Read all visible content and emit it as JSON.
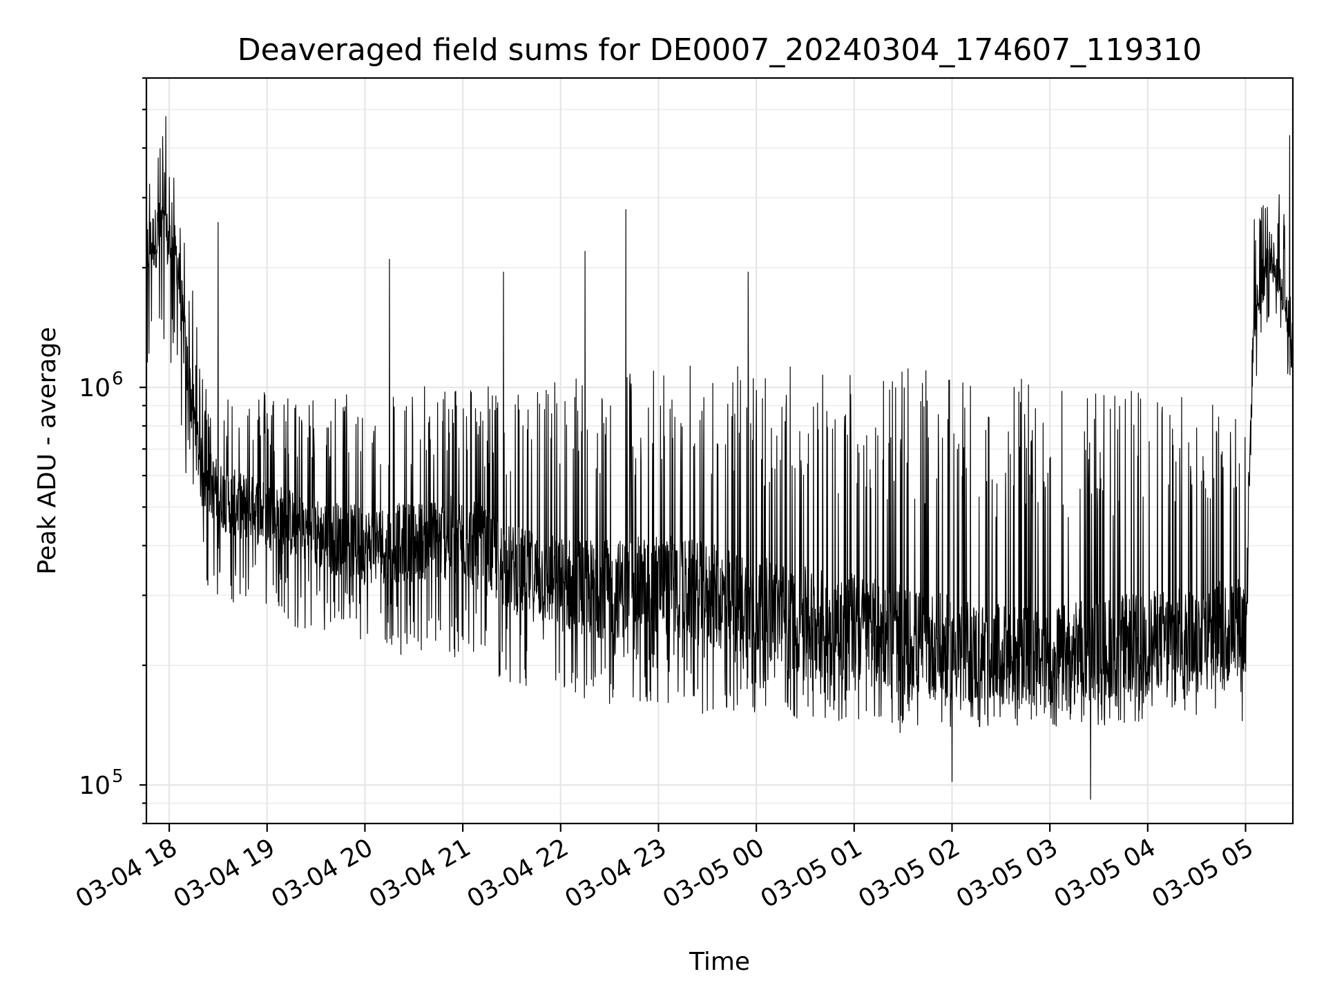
{
  "chart_data": {
    "type": "line",
    "title": "Deaveraged field sums for DE0007_20240304_174607_119310",
    "xlabel": "Time",
    "ylabel": "Peak ADU - average",
    "yscale": "log",
    "ylim": [
      80000,
      6000000
    ],
    "xlim": [
      "2024-03-04 17:46",
      "2024-03-05 05:29"
    ],
    "grid": true,
    "grid_minor": true,
    "legend": "none",
    "line_color": "#000000",
    "x_tick_labels": [
      "03-04 18",
      "03-04 19",
      "03-04 20",
      "03-04 21",
      "03-04 22",
      "03-04 23",
      "03-05 00",
      "03-05 01",
      "03-05 02",
      "03-05 03",
      "03-05 04",
      "03-05 05"
    ],
    "x_tick_values": [
      "2024-03-04 18:00",
      "2024-03-04 19:00",
      "2024-03-04 20:00",
      "2024-03-04 21:00",
      "2024-03-04 22:00",
      "2024-03-04 23:00",
      "2024-03-05 00:00",
      "2024-03-05 01:00",
      "2024-03-05 02:00",
      "2024-03-05 03:00",
      "2024-03-05 04:00",
      "2024-03-05 05:00"
    ],
    "y_tick_labels": [
      {
        "base": "10",
        "exp": "5",
        "value": 100000
      },
      {
        "base": "10",
        "exp": "6",
        "value": 1000000
      }
    ],
    "series": [
      {
        "values_description_hint": "envelope",
        "x": [
          "2024-03-04 17:46",
          "2024-03-04 17:55",
          "2024-03-04 18:05",
          "2024-03-04 18:10",
          "2024-03-04 18:20",
          "2024-03-04 18:35",
          "2024-03-04 19:00",
          "2024-03-04 19:30",
          "2024-03-04 20:00",
          "2024-03-04 20:30",
          "2024-03-04 21:00",
          "2024-03-04 21:30",
          "2024-03-04 22:00",
          "2024-03-04 22:30",
          "2024-03-04 23:00",
          "2024-03-04 23:30",
          "2024-03-05 00:00",
          "2024-03-05 00:30",
          "2024-03-05 01:00",
          "2024-03-05 01:30",
          "2024-03-05 02:00",
          "2024-03-05 02:30",
          "2024-03-05 03:00",
          "2024-03-05 03:30",
          "2024-03-05 04:00",
          "2024-03-05 04:30",
          "2024-03-05 05:00",
          "2024-03-05 05:05",
          "2024-03-05 05:15",
          "2024-03-05 05:29"
        ],
        "median": [
          2200000,
          2500000,
          2100000,
          1200000,
          600000,
          520000,
          480000,
          430000,
          400000,
          410000,
          420000,
          350000,
          320000,
          310000,
          320000,
          300000,
          280000,
          260000,
          250000,
          230000,
          220000,
          210000,
          210000,
          220000,
          230000,
          240000,
          260000,
          1500000,
          2200000,
          1400000
        ],
        "high": [
          3500000,
          4500000,
          3200000,
          2500000,
          1100000,
          1000000,
          1000000,
          950000,
          1000000,
          1000000,
          1050000,
          1000000,
          1100000,
          1100000,
          1150000,
          1150000,
          1150000,
          1150000,
          1150000,
          1150000,
          1050000,
          1050000,
          1050000,
          1000000,
          1000000,
          950000,
          950000,
          2700000,
          3300000,
          2800000
        ],
        "low": [
          1100000,
          1300000,
          1000000,
          600000,
          300000,
          280000,
          260000,
          240000,
          220000,
          210000,
          200000,
          180000,
          170000,
          160000,
          160000,
          150000,
          150000,
          145000,
          140000,
          135000,
          135000,
          140000,
          140000,
          140000,
          145000,
          150000,
          160000,
          1000000,
          1400000,
          1000000
        ],
        "peaks": [
          {
            "x": "2024-03-04 17:58",
            "y": 4800000
          },
          {
            "x": "2024-03-04 18:30",
            "y": 2600000
          },
          {
            "x": "2024-03-04 20:15",
            "y": 2100000
          },
          {
            "x": "2024-03-04 21:25",
            "y": 1950000
          },
          {
            "x": "2024-03-04 22:15",
            "y": 2200000
          },
          {
            "x": "2024-03-04 22:40",
            "y": 2800000
          },
          {
            "x": "2024-03-04 23:55",
            "y": 1950000
          },
          {
            "x": "2024-03-05 02:00",
            "y": 102000
          },
          {
            "x": "2024-03-05 03:25",
            "y": 92000
          },
          {
            "x": "2024-03-05 04:58",
            "y": 145000
          },
          {
            "x": "2024-03-05 05:27",
            "y": 4300000
          }
        ]
      }
    ]
  }
}
